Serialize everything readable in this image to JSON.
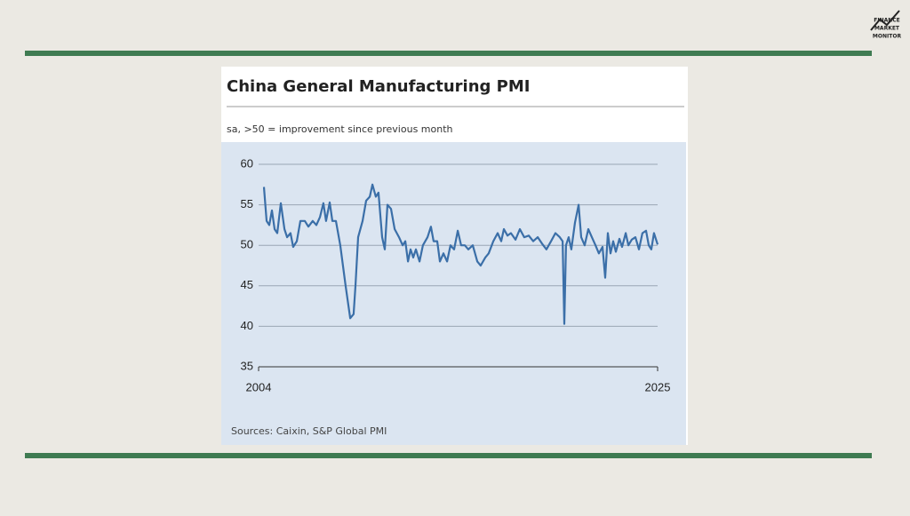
{
  "logo": [
    "FINANCE",
    "MARKET",
    "MONITOR"
  ],
  "chart_data": {
    "type": "line",
    "title": "China General Manufacturing PMI",
    "subtitle": "sa, >50 = improvement since previous month",
    "source": "Sources: Caixin, S&P Global PMI",
    "color": "#3b6fa8",
    "grid": true,
    "xlim": [
      2004,
      2025
    ],
    "xticks": [
      2004,
      2025
    ],
    "ylim": [
      35,
      60
    ],
    "yticks": [
      35,
      40,
      45,
      50,
      55,
      60
    ],
    "x": [
      2004.28,
      2004.42,
      2004.56,
      2004.7,
      2004.84,
      2004.98,
      2005.17,
      2005.36,
      2005.5,
      2005.68,
      2005.82,
      2006.01,
      2006.2,
      2006.43,
      2006.62,
      2006.85,
      2007.04,
      2007.23,
      2007.41,
      2007.55,
      2007.74,
      2007.88,
      2008.07,
      2008.3,
      2008.58,
      2008.82,
      2009.0,
      2009.1,
      2009.24,
      2009.47,
      2009.66,
      2009.85,
      2009.99,
      2010.17,
      2010.31,
      2010.5,
      2010.64,
      2010.78,
      2010.97,
      2011.16,
      2011.39,
      2011.58,
      2011.72,
      2011.86,
      2012.0,
      2012.14,
      2012.28,
      2012.47,
      2012.65,
      2012.89,
      2013.07,
      2013.21,
      2013.4,
      2013.54,
      2013.73,
      2013.92,
      2014.1,
      2014.29,
      2014.48,
      2014.66,
      2014.85,
      2015.04,
      2015.27,
      2015.51,
      2015.69,
      2015.93,
      2016.11,
      2016.35,
      2016.58,
      2016.77,
      2016.91,
      2017.1,
      2017.28,
      2017.52,
      2017.75,
      2017.98,
      2018.22,
      2018.45,
      2018.69,
      2018.92,
      2019.15,
      2019.39,
      2019.62,
      2019.85,
      2020.0,
      2020.09,
      2020.18,
      2020.32,
      2020.46,
      2020.65,
      2020.84,
      2020.98,
      2021.16,
      2021.35,
      2021.54,
      2021.73,
      2021.91,
      2022.1,
      2022.24,
      2022.38,
      2022.52,
      2022.66,
      2022.8,
      2022.99,
      2023.13,
      2023.32,
      2023.46,
      2023.64,
      2023.83,
      2024.02,
      2024.2,
      2024.39,
      2024.53,
      2024.67,
      2024.81,
      2025.0
    ],
    "values": [
      57.2,
      53,
      52.5,
      54.3,
      52,
      51.5,
      55.2,
      52,
      51,
      51.5,
      49.8,
      50.5,
      53,
      53,
      52.3,
      53,
      52.5,
      53.5,
      55.2,
      53,
      55.3,
      53,
      53,
      50,
      45,
      41,
      41.5,
      45,
      51,
      53,
      55.5,
      56,
      57.5,
      56,
      56.5,
      51,
      49.5,
      55,
      54.5,
      52,
      51,
      50,
      50.5,
      48,
      49.5,
      48.5,
      49.5,
      48,
      50,
      51,
      52.3,
      50.5,
      50.5,
      48,
      49,
      48,
      50,
      49.5,
      51.8,
      50,
      50,
      49.5,
      50,
      48,
      47.5,
      48.5,
      49,
      50.5,
      51.5,
      50.5,
      52,
      51.2,
      51.5,
      50.7,
      52,
      51,
      51.2,
      50.5,
      51,
      50.2,
      49.5,
      50.5,
      51.5,
      51,
      50.5,
      40.3,
      50,
      51,
      49.5,
      52.8,
      55,
      51,
      50,
      52,
      51,
      50,
      49,
      49.8,
      46,
      51.5,
      49,
      50.5,
      49.2,
      50.8,
      49.8,
      51.5,
      50,
      50.7,
      51,
      49.5,
      51.5,
      51.8,
      50,
      49.5,
      51.5,
      50.1
    ]
  }
}
